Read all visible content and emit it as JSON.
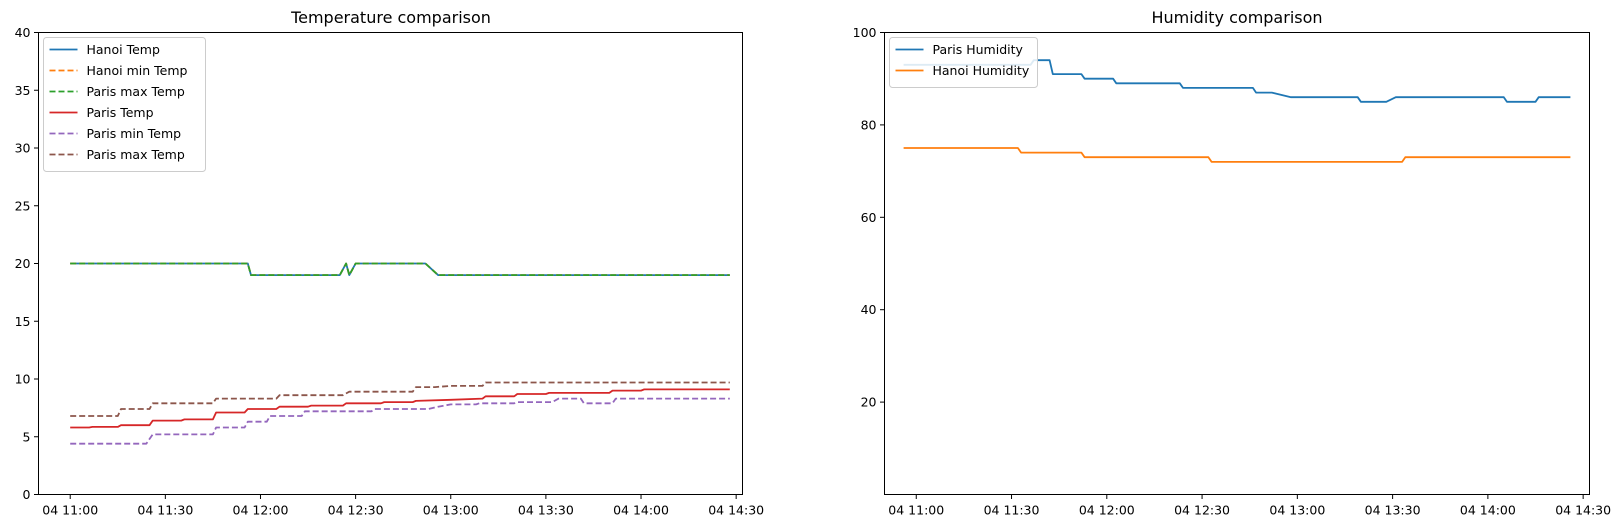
{
  "chart_data": [
    {
      "type": "line",
      "title": "Temperature comparison",
      "xlabel": "",
      "ylabel": "",
      "x_tick_labels": [
        "04 11:00",
        "04 11:30",
        "04 12:00",
        "04 12:30",
        "04 13:00",
        "04 13:30",
        "04 14:00",
        "04 14:30"
      ],
      "x_ticks_minutes": [
        660,
        690,
        720,
        750,
        780,
        810,
        840,
        870
      ],
      "x_range_minutes": [
        650,
        872
      ],
      "ylim": [
        0,
        40
      ],
      "y_ticks": [
        0,
        5,
        10,
        15,
        20,
        25,
        30,
        35,
        40
      ],
      "legend_position": "top-left",
      "grid": false,
      "series": [
        {
          "name": "Hanoi Temp",
          "color": "#1f77b4",
          "style": "solid",
          "points": [
            [
              660,
              20
            ],
            [
              716,
              20
            ],
            [
              717,
              19
            ],
            [
              745,
              19
            ],
            [
              747,
              20
            ],
            [
              748,
              19
            ],
            [
              750,
              20
            ],
            [
              772,
              20
            ],
            [
              776,
              19
            ],
            [
              868,
              19
            ]
          ]
        },
        {
          "name": "Hanoi min Temp",
          "color": "#ff7f0e",
          "style": "dashed",
          "points": [
            [
              660,
              20
            ],
            [
              716,
              20
            ],
            [
              717,
              19
            ],
            [
              745,
              19
            ],
            [
              747,
              20
            ],
            [
              748,
              19
            ],
            [
              750,
              20
            ],
            [
              772,
              20
            ],
            [
              776,
              19
            ],
            [
              868,
              19
            ]
          ]
        },
        {
          "name": "Paris max Temp",
          "color": "#2ca02c",
          "style": "dashed",
          "points": [
            [
              660,
              20
            ],
            [
              716,
              20
            ],
            [
              717,
              19
            ],
            [
              745,
              19
            ],
            [
              747,
              20
            ],
            [
              748,
              19
            ],
            [
              750,
              20
            ],
            [
              772,
              20
            ],
            [
              776,
              19
            ],
            [
              868,
              19
            ]
          ]
        },
        {
          "name": "Paris Temp",
          "color": "#d62728",
          "style": "solid",
          "points": [
            [
              660,
              5.8
            ],
            [
              666,
              5.8
            ],
            [
              667,
              5.85
            ],
            [
              675,
              5.85
            ],
            [
              676,
              6.0
            ],
            [
              685,
              6.0
            ],
            [
              686,
              6.4
            ],
            [
              695,
              6.4
            ],
            [
              696,
              6.5
            ],
            [
              705,
              6.5
            ],
            [
              706,
              7.1
            ],
            [
              715,
              7.1
            ],
            [
              716,
              7.4
            ],
            [
              725,
              7.4
            ],
            [
              726,
              7.6
            ],
            [
              735,
              7.6
            ],
            [
              736,
              7.7
            ],
            [
              746,
              7.7
            ],
            [
              747,
              7.9
            ],
            [
              758,
              7.9
            ],
            [
              759,
              8.0
            ],
            [
              768,
              8.0
            ],
            [
              769,
              8.1
            ],
            [
              780,
              8.2
            ],
            [
              790,
              8.3
            ],
            [
              791,
              8.5
            ],
            [
              800,
              8.5
            ],
            [
              801,
              8.7
            ],
            [
              810,
              8.7
            ],
            [
              811,
              8.8
            ],
            [
              830,
              8.8
            ],
            [
              831,
              9.0
            ],
            [
              840,
              9.0
            ],
            [
              841,
              9.1
            ],
            [
              868,
              9.1
            ]
          ]
        },
        {
          "name": "Paris min Temp",
          "color": "#9467bd",
          "style": "dashed",
          "points": [
            [
              660,
              4.4
            ],
            [
              684,
              4.4
            ],
            [
              686,
              5.2
            ],
            [
              705,
              5.2
            ],
            [
              706,
              5.8
            ],
            [
              715,
              5.8
            ],
            [
              716,
              6.3
            ],
            [
              722,
              6.3
            ],
            [
              723,
              6.8
            ],
            [
              733,
              6.8
            ],
            [
              734,
              7.2
            ],
            [
              755,
              7.2
            ],
            [
              756,
              7.4
            ],
            [
              773,
              7.4
            ],
            [
              776,
              7.6
            ],
            [
              780,
              7.8
            ],
            [
              788,
              7.8
            ],
            [
              789,
              7.9
            ],
            [
              800,
              7.9
            ],
            [
              801,
              8.0
            ],
            [
              812,
              8.0
            ],
            [
              814,
              8.3
            ],
            [
              821,
              8.3
            ],
            [
              822,
              7.9
            ],
            [
              831,
              7.9
            ],
            [
              832,
              8.3
            ],
            [
              868,
              8.3
            ]
          ]
        },
        {
          "name": "Paris max Temp",
          "color": "#8c564b",
          "style": "dashed",
          "points": [
            [
              660,
              6.8
            ],
            [
              675,
              6.8
            ],
            [
              676,
              7.4
            ],
            [
              685,
              7.4
            ],
            [
              686,
              7.9
            ],
            [
              705,
              7.9
            ],
            [
              706,
              8.3
            ],
            [
              725,
              8.3
            ],
            [
              726,
              8.6
            ],
            [
              746,
              8.6
            ],
            [
              748,
              8.9
            ],
            [
              768,
              8.9
            ],
            [
              769,
              9.3
            ],
            [
              775,
              9.3
            ],
            [
              780,
              9.4
            ],
            [
              790,
              9.4
            ],
            [
              791,
              9.7
            ],
            [
              868,
              9.7
            ]
          ]
        }
      ]
    },
    {
      "type": "line",
      "title": "Humidity comparison",
      "xlabel": "",
      "ylabel": "",
      "x_tick_labels": [
        "04 11:00",
        "04 11:30",
        "04 12:00",
        "04 12:30",
        "04 13:00",
        "04 13:30",
        "04 14:00",
        "04 14:30"
      ],
      "x_ticks_minutes": [
        660,
        690,
        720,
        750,
        780,
        810,
        840,
        870
      ],
      "x_range_minutes": [
        650,
        872
      ],
      "ylim": [
        0,
        100
      ],
      "y_ticks": [
        20,
        40,
        60,
        80,
        100
      ],
      "legend_position": "top-left",
      "grid": false,
      "series": [
        {
          "name": "Paris Humidity",
          "color": "#1f77b4",
          "style": "solid",
          "points": [
            [
              656,
              93
            ],
            [
              696,
              93
            ],
            [
              697,
              94
            ],
            [
              702,
              94
            ],
            [
              703,
              91
            ],
            [
              712,
              91
            ],
            [
              713,
              90
            ],
            [
              722,
              90
            ],
            [
              723,
              89
            ],
            [
              743,
              89
            ],
            [
              744,
              88
            ],
            [
              766,
              88
            ],
            [
              767,
              87
            ],
            [
              772,
              87
            ],
            [
              778,
              86
            ],
            [
              799,
              86
            ],
            [
              800,
              85
            ],
            [
              808,
              85
            ],
            [
              811,
              86
            ],
            [
              845,
              86
            ],
            [
              846,
              85
            ],
            [
              855,
              85
            ],
            [
              856,
              86
            ],
            [
              866,
              86
            ]
          ]
        },
        {
          "name": "Hanoi Humidity",
          "color": "#ff7f0e",
          "style": "solid",
          "points": [
            [
              656,
              75
            ],
            [
              692,
              75
            ],
            [
              693,
              74
            ],
            [
              712,
              74
            ],
            [
              713,
              73
            ],
            [
              752,
              73
            ],
            [
              753,
              72
            ],
            [
              813,
              72
            ],
            [
              814,
              73
            ],
            [
              866,
              73
            ]
          ]
        }
      ]
    }
  ]
}
